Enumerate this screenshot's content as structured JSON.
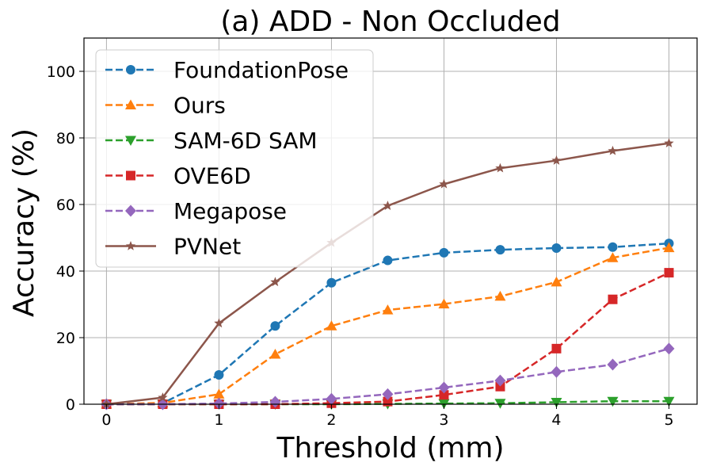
{
  "chart_data": {
    "type": "line",
    "title": "(a) ADD - Non Occluded",
    "xlabel": "Threshold (mm)",
    "ylabel": "Accuracy (%)",
    "xlim": [
      -0.2,
      5.25
    ],
    "ylim": [
      0,
      110
    ],
    "xticks": [
      0,
      1,
      2,
      3,
      4,
      5
    ],
    "yticks": [
      0,
      20,
      40,
      60,
      80,
      100
    ],
    "grid": true,
    "legend_position": "top-left",
    "x": [
      0,
      0.5,
      1,
      1.5,
      2,
      2.5,
      3,
      3.5,
      4,
      4.5,
      5
    ],
    "series": [
      {
        "name": "FoundationPose",
        "color": "#1f77b4",
        "marker": "circle",
        "line": "dashed",
        "values": [
          0,
          0.3,
          8.8,
          23.5,
          36.5,
          43.2,
          45.5,
          46.4,
          46.9,
          47.2,
          48.3
        ]
      },
      {
        "name": "Ours",
        "color": "#ff7f0e",
        "marker": "triangle-up",
        "line": "dashed",
        "values": [
          0,
          0.4,
          3.0,
          15.0,
          23.5,
          28.3,
          30.1,
          32.4,
          36.7,
          44.0,
          47.0
        ]
      },
      {
        "name": "SAM-6D SAM",
        "color": "#2ca02c",
        "marker": "triangle-down",
        "line": "dashed",
        "values": [
          0,
          0,
          0,
          0,
          0,
          0.1,
          0.2,
          0.3,
          0.6,
          0.9,
          0.9
        ]
      },
      {
        "name": "OVE6D",
        "color": "#d62728",
        "marker": "square",
        "line": "dashed",
        "values": [
          0,
          0,
          0,
          0,
          0.3,
          0.8,
          2.8,
          5.3,
          16.7,
          31.5,
          39.5
        ]
      },
      {
        "name": "Megapose",
        "color": "#9467bd",
        "marker": "diamond",
        "line": "dashed",
        "values": [
          0,
          0,
          0.2,
          0.7,
          1.6,
          3.0,
          5.0,
          7.1,
          9.7,
          11.9,
          16.7
        ]
      },
      {
        "name": "PVNet",
        "color": "#8c564b",
        "marker": "star",
        "line": "solid",
        "values": [
          0,
          2.0,
          24.3,
          36.7,
          48.5,
          59.6,
          66.1,
          70.9,
          73.2,
          76.1,
          78.4
        ]
      }
    ]
  }
}
